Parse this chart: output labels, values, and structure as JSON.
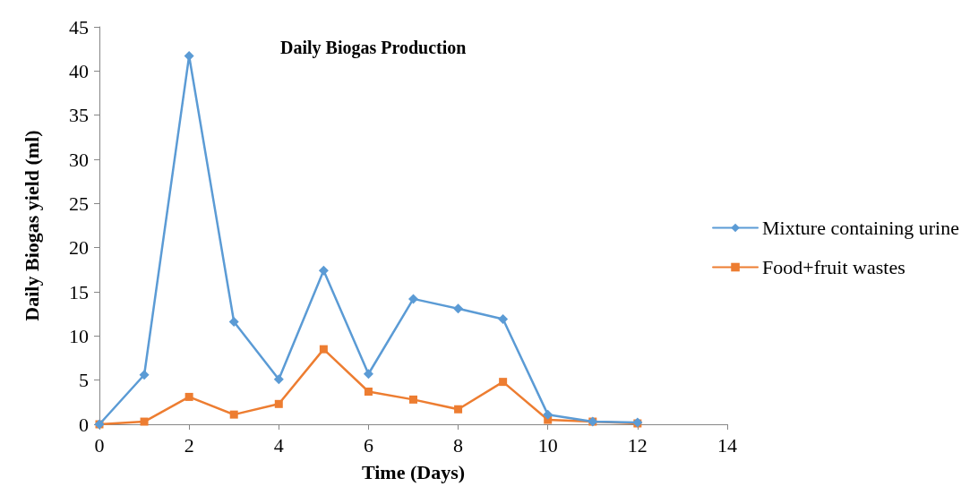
{
  "chart_data": {
    "type": "line",
    "title": "Daily Biogas Production",
    "xlabel": "Time (Days)",
    "ylabel": "Daily Biogas yield (ml)",
    "x": [
      0,
      1,
      2,
      3,
      4,
      5,
      6,
      7,
      8,
      9,
      10,
      11,
      12
    ],
    "series": [
      {
        "name": "Mixture containing urine",
        "color": "#5b9bd5",
        "marker": "diamond",
        "values": [
          0,
          5.6,
          41.7,
          11.6,
          5.1,
          17.4,
          5.7,
          14.2,
          13.1,
          11.9,
          1.1,
          0.3,
          0.2
        ]
      },
      {
        "name": "Food+fruit wastes",
        "color": "#ed7d31",
        "marker": "square",
        "values": [
          0,
          0.3,
          3.1,
          1.1,
          2.3,
          8.5,
          3.7,
          2.8,
          1.7,
          4.8,
          0.5,
          0.3,
          0.1
        ]
      }
    ],
    "xlim": [
      0,
      14
    ],
    "xticks": [
      0,
      2,
      4,
      6,
      8,
      10,
      12,
      14
    ],
    "ylim": [
      0,
      45
    ],
    "yticks": [
      0,
      5,
      10,
      15,
      20,
      25,
      30,
      35,
      40,
      45
    ],
    "grid": false,
    "legend": "right",
    "line_style": "solid"
  }
}
